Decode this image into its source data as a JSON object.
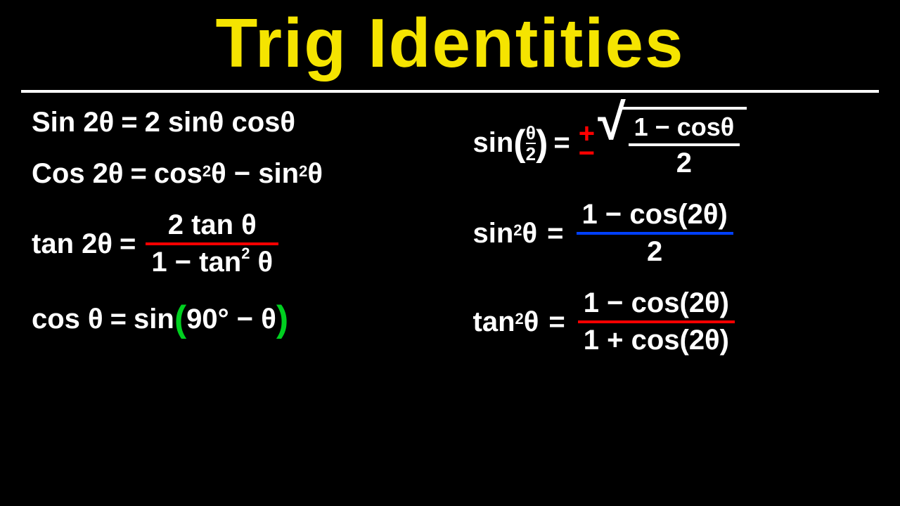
{
  "colors": {
    "background": "#000000",
    "text": "#ffffff",
    "title": "#f5e400",
    "accent_red": "#ff0000",
    "accent_blue": "#0040ff",
    "accent_green": "#00d020",
    "divider": "#ffffff"
  },
  "typography": {
    "title_fontsize": 98,
    "equation_fontsize": 40,
    "font_family": "Comic Sans MS"
  },
  "title": "Trig Identities",
  "equations": {
    "left": [
      {
        "lhs": "Sin 2θ",
        "eq": "=",
        "rhs": "2 sinθ cosθ",
        "type": "inline"
      },
      {
        "lhs": "Cos 2θ",
        "eq": "=",
        "rhs_a": "cos",
        "rhs_sup1": "2",
        "rhs_b": "θ − sin",
        "rhs_sup2": "2",
        "rhs_c": "θ",
        "type": "inline-sup"
      },
      {
        "lhs": "tan 2θ",
        "eq": "=",
        "frac_top": "2 tan θ",
        "frac_bot_a": "1 − tan",
        "frac_bot_sup": "2",
        "frac_bot_b": " θ",
        "line_color": "#ff0000",
        "type": "fraction"
      },
      {
        "lhs": "cos θ",
        "eq": "=",
        "rhs_a": "sin",
        "paren_open": "(",
        "rhs_b": "90° − θ",
        "paren_close": ")",
        "paren_color": "#00d020",
        "type": "paren"
      }
    ],
    "right": [
      {
        "lhs_a": "sin",
        "paren_open": "(",
        "inner_top": "θ",
        "inner_bot": "2",
        "paren_close": ")",
        "eq": "=",
        "pm_plus": "+",
        "pm_minus": "−",
        "pm_color": "#ff0000",
        "sqrt_top": "1 − cosθ",
        "sqrt_bot": "2",
        "sqrt_line_color": "#ffffff",
        "type": "half-angle-sqrt"
      },
      {
        "lhs_a": "sin",
        "lhs_sup": "2",
        "lhs_b": "θ",
        "eq": "=",
        "frac_top": "1 − cos(2θ)",
        "frac_bot": "2",
        "line_color": "#0040ff",
        "type": "fraction-simple"
      },
      {
        "lhs_a": "tan",
        "lhs_sup": "2",
        "lhs_b": "θ",
        "eq": "=",
        "frac_top": "1 − cos(2θ)",
        "frac_bot": "1 + cos(2θ)",
        "line_color": "#ff0000",
        "type": "fraction-simple"
      }
    ]
  }
}
